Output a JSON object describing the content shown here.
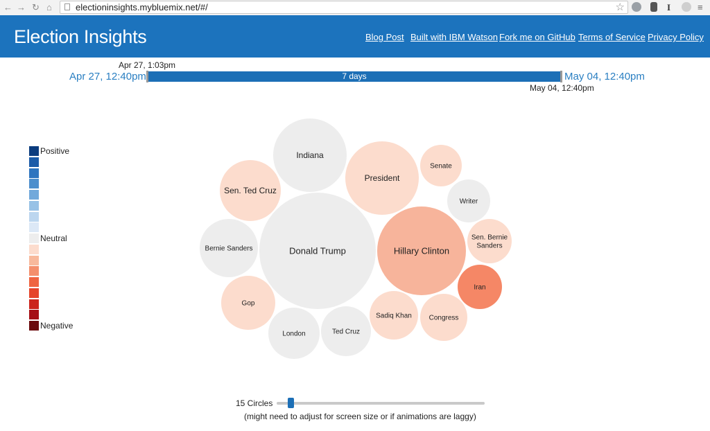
{
  "browser": {
    "url": "electioninsights.mybluemix.net/#/"
  },
  "header": {
    "title": "Election Insights",
    "links": [
      "Blog Post",
      "Built with IBM Watson",
      "Fork me on GitHub",
      "Terms of Service",
      "Privacy Policy"
    ]
  },
  "timerange": {
    "start": "Apr 27, 12:40pm",
    "end": "May 04, 12:40pm",
    "handle_start": "Apr 27, 1:03pm",
    "handle_end": "May 04, 12:40pm",
    "span": "7 days"
  },
  "legend": {
    "positive": "Positive",
    "neutral": "Neutral",
    "negative": "Negative",
    "colors": [
      "#0b3c7e",
      "#1b5ba8",
      "#2f75bf",
      "#4d8fcd",
      "#72a9db",
      "#98c2e6",
      "#bcd6ef",
      "#dce8f6",
      "#ededed",
      "#fcdccd",
      "#f8b99c",
      "#f48f6c",
      "#ef6441",
      "#e5442b",
      "#cb241c",
      "#a50f15",
      "#6b0a0d"
    ]
  },
  "bubbles": [
    {
      "label": "Donald Trump",
      "sentiment": "neutral",
      "color": "#ededed"
    },
    {
      "label": "Hillary Clinton",
      "sentiment": "negative",
      "color": "#f7b49b"
    },
    {
      "label": "Indiana",
      "sentiment": "neutral",
      "color": "#ededed"
    },
    {
      "label": "President",
      "sentiment": "negative",
      "color": "#fcdccd"
    },
    {
      "label": "Sen. Ted Cruz",
      "sentiment": "negative",
      "color": "#fcdccd"
    },
    {
      "label": "Bernie Sanders",
      "sentiment": "neutral",
      "color": "#ededed"
    },
    {
      "label": "Gop",
      "sentiment": "negative",
      "color": "#fcdccd"
    },
    {
      "label": "London",
      "sentiment": "neutral",
      "color": "#ededed"
    },
    {
      "label": "Ted Cruz",
      "sentiment": "neutral",
      "color": "#ededed"
    },
    {
      "label": "Sadiq Khan",
      "sentiment": "negative",
      "color": "#fcdccd"
    },
    {
      "label": "Congress",
      "sentiment": "negative",
      "color": "#fcdccd"
    },
    {
      "label": "Iran",
      "sentiment": "negative",
      "color": "#f58766"
    },
    {
      "label": "Sen. Bernie Sanders",
      "sentiment": "negative",
      "color": "#fcdccd"
    },
    {
      "label": "Writer",
      "sentiment": "neutral",
      "color": "#ededed"
    },
    {
      "label": "Senate",
      "sentiment": "negative",
      "color": "#fcdccd"
    }
  ],
  "slider": {
    "count_label": "15 Circles",
    "value": 15,
    "note": "(might need to adjust for screen size or if animations are laggy)"
  }
}
